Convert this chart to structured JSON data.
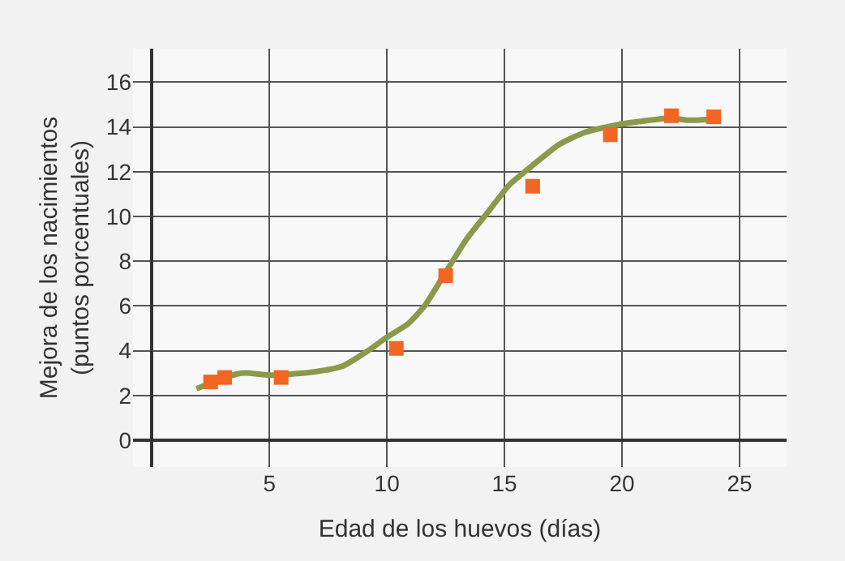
{
  "chart_data": {
    "type": "scatter",
    "xlabel": "Edad de los huevos (días)",
    "ylabel": "Mejora de los nacimientos\n(puntos porcentuales)",
    "series": [
      {
        "type": "line",
        "color": "#8a9a4b",
        "marker": "none",
        "line_style": "solid",
        "x": [
          1.9,
          3.6,
          4.0,
          5.1,
          6.9,
          8.1,
          9.2,
          10.0,
          10.9,
          11.6,
          12.5,
          13.4,
          14.3,
          15.2,
          16.1,
          17.3,
          18.4,
          19.8,
          21.2,
          22.1,
          22.8,
          24.0
        ],
        "values": [
          2.3,
          2.95,
          3.0,
          2.9,
          3.05,
          3.3,
          4.0,
          4.6,
          5.2,
          6.0,
          7.5,
          9.0,
          10.2,
          11.4,
          12.2,
          13.2,
          13.75,
          14.1,
          14.3,
          14.4,
          14.3,
          14.35
        ]
      },
      {
        "color": "#f26522",
        "marker": "square",
        "x": [
          2.5,
          3.1,
          5.5,
          10.4,
          12.5,
          16.2,
          19.5,
          22.1,
          23.9
        ],
        "values": [
          2.6,
          2.8,
          2.8,
          4.1,
          7.35,
          11.35,
          13.65,
          14.5,
          14.45
        ]
      }
    ],
    "xlim": [
      -0.8,
      27
    ],
    "ylim": [
      -1.2,
      17.5
    ],
    "xticks": [
      5,
      10,
      15,
      20,
      25
    ],
    "yticks": [
      0,
      2,
      4,
      6,
      8,
      10,
      12,
      14,
      16
    ],
    "grid": true,
    "legend": false
  }
}
